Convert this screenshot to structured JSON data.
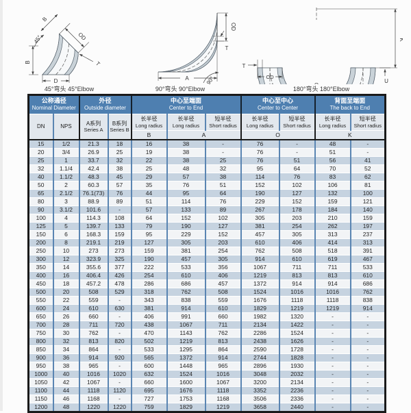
{
  "page": {
    "background": "#fcfcfc"
  },
  "diagrams": {
    "d45": {
      "caption": "45°弯头 45°Elbow",
      "labels": {
        "b_axis": "B",
        "od": "OD",
        "angle": "45°",
        "b_height": "B",
        "wall": "T",
        "face_width": "D"
      }
    },
    "d90": {
      "caption": "90°弯头 90°Elbow",
      "labels": {
        "od": "OD",
        "wall": "T",
        "center_to_end": "A",
        "angle": "90°"
      }
    },
    "d180": {
      "caption": "180°弯头 180°Elbow",
      "labels": {
        "wall": "T",
        "od": "OD",
        "center_to_center": "O",
        "back_to_end": "K",
        "u": "U"
      }
    }
  },
  "table": {
    "colors": {
      "header_bg": "#4e7fb0",
      "header_text": "#ffffff",
      "subheader_bg": "#e2e7ed",
      "row_stripe": "#c6d3e0",
      "row_plain": "#f2f4f6",
      "grid_vertical": "#5a85b2",
      "grid_horizontal": "#ffffff",
      "frame": "#1a1a1a",
      "text": "#242424"
    },
    "groups": [
      {
        "zh": "公称通径",
        "en": "Nominal Diameter"
      },
      {
        "zh": "外径",
        "en": "Outside diameter"
      },
      {
        "zh": "中心至端面",
        "en": "Center to End"
      },
      {
        "zh": "中心至中心",
        "en": "Center to Center"
      },
      {
        "zh": "背面至端面",
        "en": "The back to End"
      }
    ],
    "sub": [
      {
        "l1": "DN",
        "l2": ""
      },
      {
        "l1": "NPS",
        "l2": ""
      },
      {
        "l1": "A系列",
        "l2": "Series A"
      },
      {
        "l1": "B系列",
        "l2": "Series B"
      },
      {
        "l1": "长半径",
        "l2": "Long radius"
      },
      {
        "l1": "长半径",
        "l2": "Long radius"
      },
      {
        "l1": "短半径",
        "l2": "Short radius"
      },
      {
        "l1": "长半径",
        "l2": "Long radius"
      },
      {
        "l1": "短半径",
        "l2": "Short radius"
      },
      {
        "l1": "长半径",
        "l2": "Long radius"
      },
      {
        "l1": "短半径",
        "l2": "Short radius"
      }
    ],
    "letters": [
      "B",
      "A",
      "O",
      "K"
    ],
    "col_keys": [
      "dn",
      "nps",
      "series_a",
      "series_b",
      "b_long_radius",
      "a_long_radius",
      "a_short_radius",
      "o_long_radius",
      "o_short_radius",
      "k_long_radius",
      "k_short_radius"
    ],
    "rows": [
      [
        "15",
        "1/2",
        "21.3",
        "18",
        "16",
        "38",
        "-",
        "76",
        "-",
        "48",
        "-"
      ],
      [
        "20",
        "3/4",
        "26.9",
        "25",
        "19",
        "38",
        "-",
        "76",
        "-",
        "51",
        "-"
      ],
      [
        "25",
        "1",
        "33.7",
        "32",
        "22",
        "38",
        "25",
        "76",
        "51",
        "56",
        "41"
      ],
      [
        "32",
        "1.1/4",
        "42.4",
        "38",
        "25",
        "48",
        "32",
        "95",
        "64",
        "70",
        "52"
      ],
      [
        "40",
        "1.1/2",
        "48.3",
        "45",
        "29",
        "57",
        "38",
        "114",
        "76",
        "83",
        "62"
      ],
      [
        "50",
        "2",
        "60.3",
        "57",
        "35",
        "76",
        "51",
        "152",
        "102",
        "106",
        "81"
      ],
      [
        "65",
        "2.1/2",
        "76.1(73)",
        "76",
        "44",
        "95",
        "64",
        "190",
        "127",
        "132",
        "100"
      ],
      [
        "80",
        "3",
        "88.9",
        "89",
        "51",
        "114",
        "76",
        "229",
        "152",
        "159",
        "121"
      ],
      [
        "90",
        "3.1/2",
        "101.6",
        "-",
        "57",
        "133",
        "89",
        "267",
        "178",
        "184",
        "140"
      ],
      [
        "100",
        "4",
        "114.3",
        "108",
        "64",
        "152",
        "102",
        "305",
        "203",
        "210",
        "159"
      ],
      [
        "125",
        "5",
        "139.7",
        "133",
        "79",
        "190",
        "127",
        "381",
        "254",
        "262",
        "197"
      ],
      [
        "150",
        "6",
        "168.3",
        "159",
        "95",
        "229",
        "152",
        "457",
        "305",
        "313",
        "237"
      ],
      [
        "200",
        "8",
        "219.1",
        "219",
        "127",
        "305",
        "203",
        "610",
        "406",
        "414",
        "313"
      ],
      [
        "250",
        "10",
        "273",
        "273",
        "159",
        "381",
        "254",
        "762",
        "508",
        "518",
        "391"
      ],
      [
        "300",
        "12",
        "323.9",
        "325",
        "190",
        "457",
        "305",
        "914",
        "610",
        "619",
        "467"
      ],
      [
        "350",
        "14",
        "355.6",
        "377",
        "222",
        "533",
        "356",
        "1067",
        "711",
        "711",
        "533"
      ],
      [
        "400",
        "16",
        "406.4",
        "426",
        "254",
        "610",
        "406",
        "1219",
        "813",
        "813",
        "610"
      ],
      [
        "450",
        "18",
        "457.2",
        "478",
        "286",
        "686",
        "457",
        "1372",
        "914",
        "914",
        "686"
      ],
      [
        "500",
        "20",
        "508",
        "529",
        "318",
        "762",
        "508",
        "1524",
        "1016",
        "1016",
        "762"
      ],
      [
        "550",
        "22",
        "559",
        "-",
        "343",
        "838",
        "559",
        "1676",
        "1118",
        "1118",
        "838"
      ],
      [
        "600",
        "24",
        "610",
        "630",
        "381",
        "914",
        "610",
        "1829",
        "1219",
        "1219",
        "914"
      ],
      [
        "650",
        "26",
        "660",
        "-",
        "406",
        "991",
        "660",
        "1982",
        "1320",
        "-",
        "-"
      ],
      [
        "700",
        "28",
        "711",
        "720",
        "438",
        "1067",
        "711",
        "2134",
        "1422",
        "-",
        "-"
      ],
      [
        "750",
        "30",
        "762",
        "-",
        "470",
        "1143",
        "762",
        "2286",
        "1524",
        "-",
        "-"
      ],
      [
        "800",
        "32",
        "813",
        "820",
        "502",
        "1219",
        "813",
        "2438",
        "1626",
        "-",
        "-"
      ],
      [
        "850",
        "34",
        "864",
        "-",
        "533",
        "1295",
        "864",
        "2590",
        "1728",
        "-",
        "-"
      ],
      [
        "900",
        "36",
        "914",
        "920",
        "565",
        "1372",
        "914",
        "2744",
        "1828",
        "-",
        "-"
      ],
      [
        "950",
        "38",
        "965",
        "-",
        "600",
        "1448",
        "965",
        "2896",
        "1930",
        "-",
        "-"
      ],
      [
        "1000",
        "40",
        "1016",
        "1020",
        "632",
        "1524",
        "1016",
        "3048",
        "2032",
        "-",
        "-"
      ],
      [
        "1050",
        "42",
        "1067",
        "-",
        "660",
        "1600",
        "1067",
        "3200",
        "2134",
        "-",
        "-"
      ],
      [
        "1100",
        "44",
        "1118",
        "1120",
        "695",
        "1676",
        "1118",
        "3352",
        "2236",
        "-",
        "-"
      ],
      [
        "1150",
        "46",
        "1168",
        "-",
        "727",
        "1753",
        "1168",
        "3506",
        "2336",
        "-",
        "-"
      ],
      [
        "1200",
        "48",
        "1220",
        "1220",
        "759",
        "1829",
        "1219",
        "3658",
        "2440",
        "-",
        "-"
      ]
    ]
  }
}
